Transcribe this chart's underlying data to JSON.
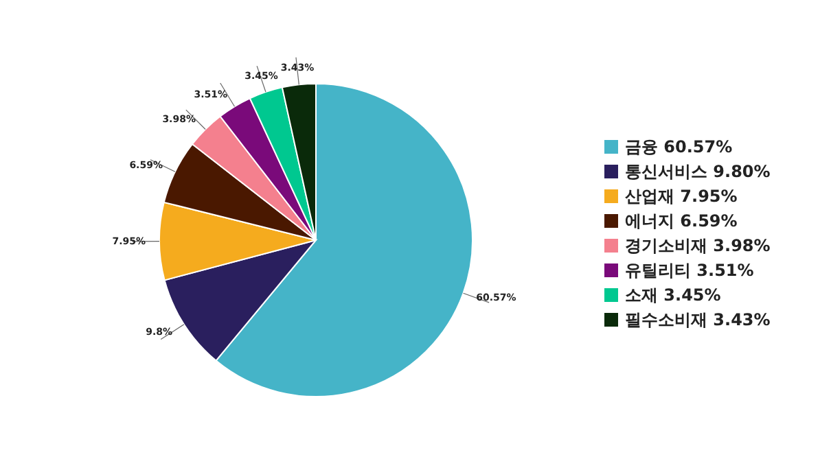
{
  "chart_data": {
    "type": "pie",
    "categories": [
      "금융 60.57%",
      "통신서비스 9.80%",
      "산업재 7.95%",
      "에너지 6.59%",
      "경기소비재 3.98%",
      "유틸리티 3.51%",
      "소재 3.45%",
      "필수소비재 3.43%"
    ],
    "values": [
      60.57,
      9.8,
      7.95,
      6.59,
      3.98,
      3.51,
      3.45,
      3.43
    ],
    "value_labels": [
      "60.57%",
      "9.8%",
      "7.95%",
      "6.59%",
      "3.98%",
      "3.51%",
      "3.45%",
      "3.43%"
    ],
    "colors": [
      "#45b4c8",
      "#2a1f5e",
      "#f5ab1e",
      "#4a1800",
      "#f4808e",
      "#7a0a7a",
      "#00c890",
      "#0a2a0a"
    ],
    "legend": "right"
  }
}
